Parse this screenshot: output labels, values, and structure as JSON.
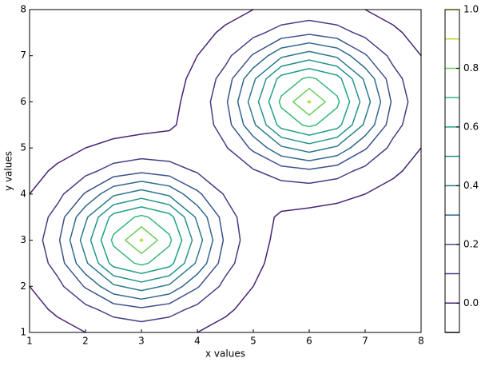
{
  "chart_data": {
    "type": "contour",
    "xlabel": "x values",
    "ylabel": "y values",
    "xlim": [
      1,
      8
    ],
    "ylim": [
      1,
      8
    ],
    "xticks": [
      1,
      2,
      3,
      4,
      5,
      6,
      7,
      8
    ],
    "yticks": [
      1,
      2,
      3,
      4,
      5,
      6,
      7,
      8
    ],
    "x": [
      1,
      1.5,
      2,
      2.5,
      3,
      3.5,
      4,
      4.5,
      5,
      5.5,
      6,
      6.5,
      7,
      7.5,
      8
    ],
    "y": [
      1,
      1.5,
      2,
      2.5,
      3,
      3.5,
      4,
      4.5,
      5,
      5.5,
      6,
      6.5,
      7,
      7.5,
      8
    ],
    "z": [
      [
        -0.04,
        -0.02,
        0,
        0.02,
        0.03,
        0.02,
        0,
        -0.02,
        -0.04,
        -0.04,
        -0.04,
        -0.04,
        -0.04,
        -0.04,
        -0.04
      ],
      [
        -0.02,
        0.01,
        0.07,
        0.14,
        0.18,
        0.14,
        0.07,
        0.01,
        -0.02,
        -0.04,
        -0.04,
        -0.04,
        -0.04,
        -0.04,
        -0.04
      ],
      [
        0,
        0.07,
        0.21,
        0.38,
        0.45,
        0.38,
        0.21,
        0.07,
        0,
        -0.03,
        -0.04,
        -0.04,
        -0.04,
        -0.04,
        -0.04
      ],
      [
        0.02,
        0.14,
        0.38,
        0.64,
        0.72,
        0.64,
        0.38,
        0.14,
        0.02,
        -0.03,
        -0.04,
        -0.04,
        -0.04,
        -0.04,
        -0.04
      ],
      [
        0.03,
        0.18,
        0.45,
        0.72,
        0.91,
        0.72,
        0.45,
        0.18,
        0.03,
        -0.02,
        -0.04,
        -0.04,
        -0.04,
        -0.04,
        -0.04
      ],
      [
        0.02,
        0.14,
        0.38,
        0.64,
        0.72,
        0.64,
        0.38,
        0.15,
        0.03,
        -0.01,
        -0.02,
        -0.03,
        -0.03,
        -0.04,
        -0.04
      ],
      [
        0,
        0.07,
        0.21,
        0.38,
        0.45,
        0.38,
        0.22,
        0.09,
        0.03,
        0.03,
        0.03,
        0.02,
        0,
        -0.02,
        -0.04
      ],
      [
        -0.02,
        0.01,
        0.07,
        0.14,
        0.18,
        0.15,
        0.09,
        0.06,
        0.09,
        0.15,
        0.18,
        0.14,
        0.07,
        0.01,
        -0.02
      ],
      [
        -0.04,
        -0.02,
        0,
        0.02,
        0.03,
        0.03,
        0.03,
        0.09,
        0.22,
        0.38,
        0.45,
        0.38,
        0.21,
        0.07,
        0
      ],
      [
        -0.04,
        -0.04,
        -0.03,
        -0.03,
        -0.02,
        -0.01,
        0.03,
        0.15,
        0.38,
        0.64,
        0.72,
        0.64,
        0.38,
        0.14,
        0.02
      ],
      [
        -0.04,
        -0.04,
        -0.04,
        -0.04,
        -0.04,
        -0.02,
        0.03,
        0.18,
        0.45,
        0.72,
        0.91,
        0.72,
        0.45,
        0.18,
        0.03
      ],
      [
        -0.04,
        -0.04,
        -0.04,
        -0.04,
        -0.04,
        -0.03,
        0.02,
        0.14,
        0.38,
        0.64,
        0.72,
        0.64,
        0.38,
        0.14,
        0.02
      ],
      [
        -0.04,
        -0.04,
        -0.04,
        -0.04,
        -0.04,
        -0.03,
        0,
        0.07,
        0.21,
        0.38,
        0.45,
        0.38,
        0.21,
        0.07,
        0
      ],
      [
        -0.04,
        -0.04,
        -0.04,
        -0.04,
        -0.04,
        -0.04,
        -0.02,
        0.01,
        0.07,
        0.14,
        0.18,
        0.14,
        0.07,
        0.01,
        -0.02
      ],
      [
        -0.04,
        -0.04,
        -0.04,
        -0.04,
        -0.04,
        -0.04,
        -0.04,
        -0.02,
        0,
        0.02,
        0.03,
        0.02,
        0,
        -0.02,
        -0.04
      ]
    ],
    "levels": [
      -0.1,
      0,
      0.1,
      0.2,
      0.3,
      0.4,
      0.5,
      0.6,
      0.7,
      0.8,
      0.9,
      1.0
    ],
    "level_colors": [
      "#440154",
      "#482374",
      "#433e85",
      "#3b528b",
      "#31688e",
      "#29798e",
      "#21918c",
      "#1fa088",
      "#35b779",
      "#6ccd5a",
      "#b5de2b",
      "#fde725"
    ],
    "colorbar_lim": [
      -0.1,
      1.0
    ],
    "colorbar_ticks": [
      {
        "value": 0,
        "label": "0.0"
      },
      {
        "value": 0.2,
        "label": "0.2"
      },
      {
        "value": 0.4,
        "label": "0.4"
      },
      {
        "value": 0.6,
        "label": "0.6"
      },
      {
        "value": 0.8,
        "label": "0.8"
      },
      {
        "value": 1.0,
        "label": "1.0"
      }
    ]
  }
}
